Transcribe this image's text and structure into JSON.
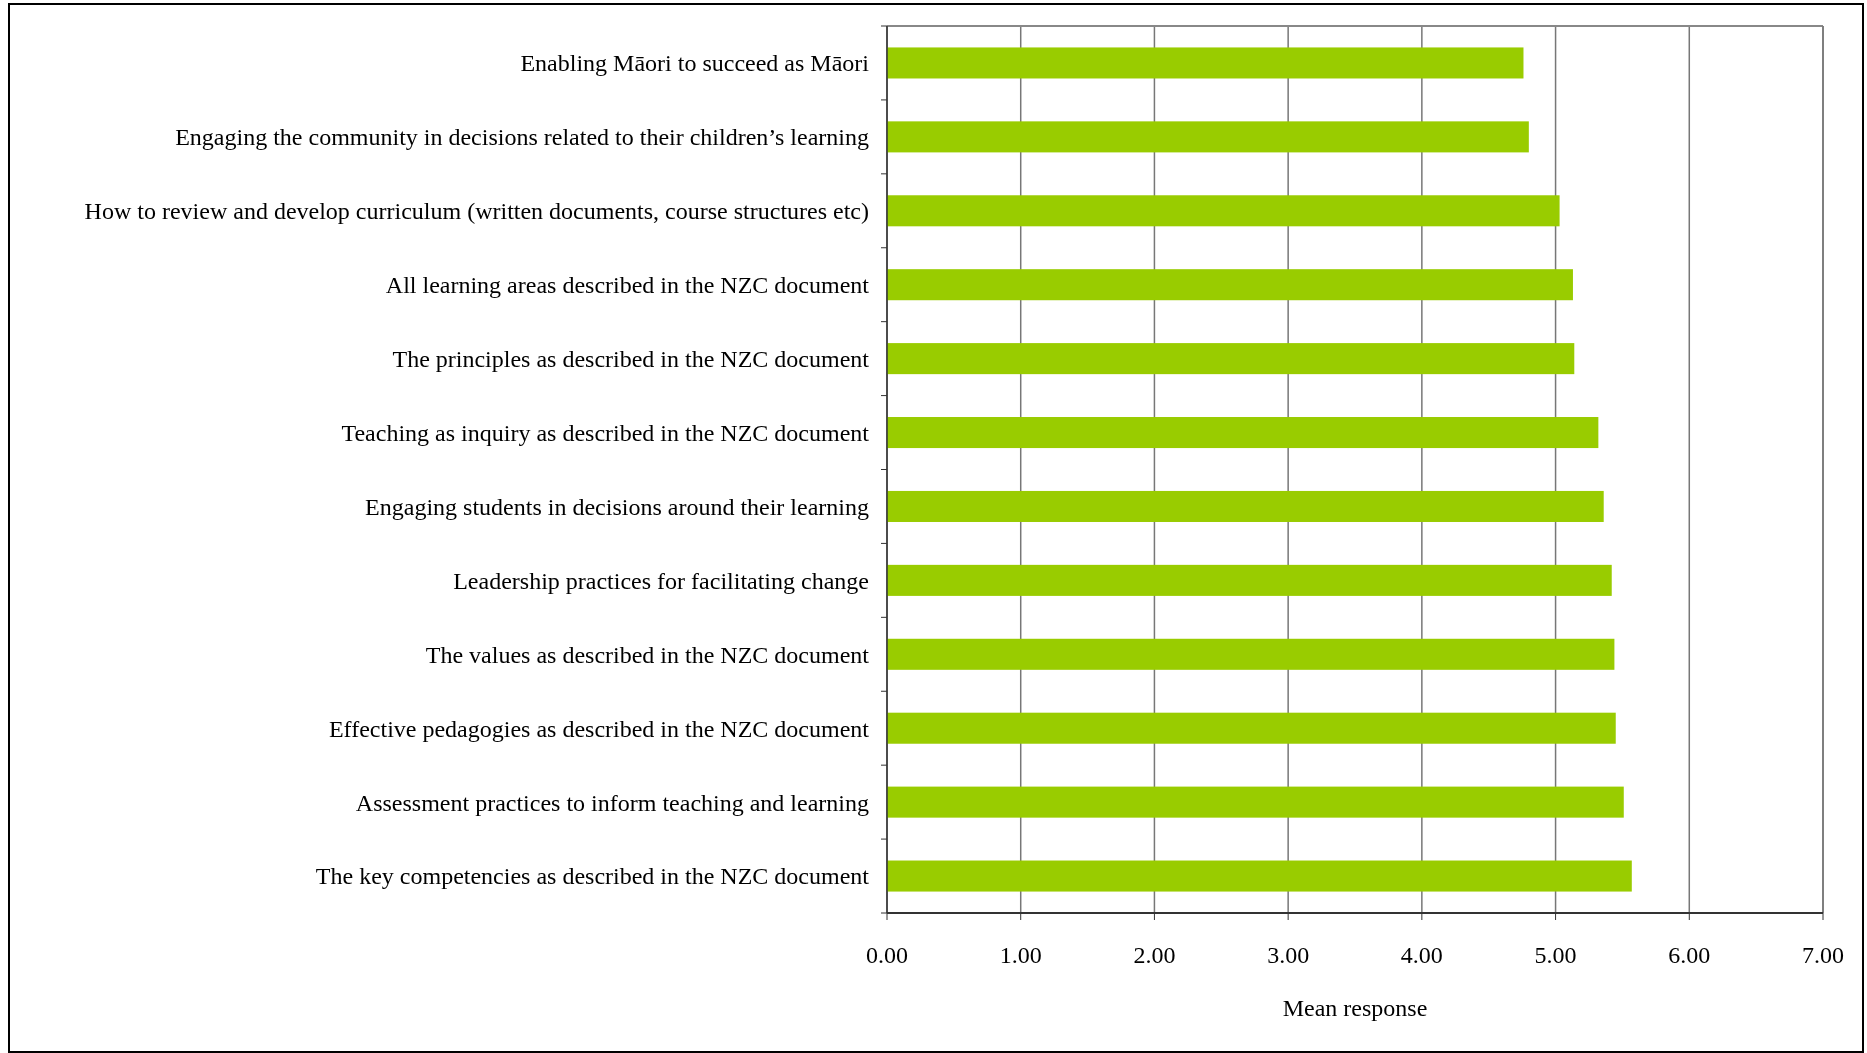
{
  "chart_data": {
    "type": "bar",
    "orientation": "horizontal",
    "xlabel": "Mean response",
    "categories": [
      "Enabling Māori to succeed as Māori",
      "Engaging the community in decisions related to their children’s learning",
      "How to review and develop curriculum (written documents, course structures etc)",
      "All learning areas described in the NZC document",
      "The principles as described in the NZC document",
      "Teaching as inquiry as described in the NZC document",
      "Engaging students in decisions around their learning",
      "Leadership practices for facilitating change",
      "The values as described in the NZC document",
      "Effective pedagogies as described in the NZC document",
      "Assessment practices to inform teaching and learning",
      "The key competencies as described in the NZC document"
    ],
    "values": [
      4.76,
      4.8,
      5.03,
      5.13,
      5.14,
      5.32,
      5.36,
      5.42,
      5.44,
      5.45,
      5.51,
      5.57
    ],
    "color": "#99cc00",
    "xlim": [
      0,
      7
    ],
    "xticks": [
      {
        "value": 0,
        "label": "0.00"
      },
      {
        "value": 1,
        "label": "1.00"
      },
      {
        "value": 2,
        "label": "2.00"
      },
      {
        "value": 3,
        "label": "3.00"
      },
      {
        "value": 4,
        "label": "4.00"
      },
      {
        "value": 5,
        "label": "5.00"
      },
      {
        "value": 6,
        "label": "6.00"
      },
      {
        "value": 7,
        "label": "7.00"
      }
    ],
    "grid": "x"
  }
}
